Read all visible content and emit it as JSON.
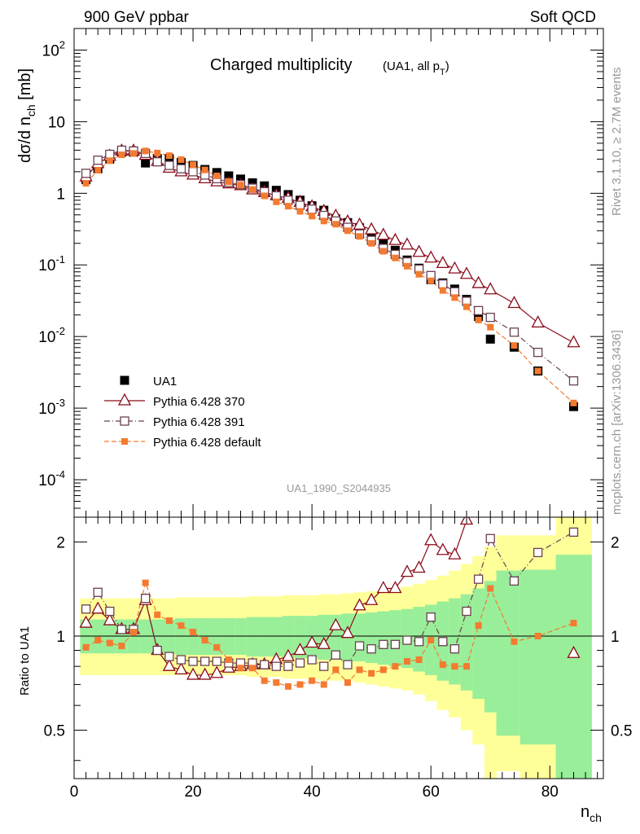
{
  "header": {
    "left": "900 GeV ppbar",
    "right": "Soft QCD"
  },
  "side_labels": {
    "rivet": "Rivet 3.1.10, ≥ 2.7M events",
    "mcplots": "mcplots.cern.ch [arXiv:1306.3436]"
  },
  "chart_data": [
    {
      "type": "scatter",
      "panel": "main",
      "title": "Charged multiplicity",
      "title_sub": "(UA1, all p_T)",
      "ylabel": "dσ/d n_ch [mb]",
      "analysis_id": "UA1_1990_S2044935",
      "yscale": "log",
      "ylim": [
        3e-05,
        200
      ],
      "yticks": [
        "10^2",
        "10",
        "1",
        "10^-1",
        "10^-2",
        "10^-3",
        "10^-4"
      ],
      "x": [
        2,
        4,
        6,
        8,
        10,
        12,
        14,
        16,
        18,
        20,
        22,
        24,
        26,
        28,
        30,
        32,
        34,
        36,
        38,
        40,
        42,
        44,
        46,
        48,
        50,
        52,
        54,
        56,
        58,
        60,
        62,
        64,
        66,
        68,
        70,
        74,
        78,
        84
      ],
      "series": [
        {
          "name": "UA1",
          "style": "data",
          "color": "#000000",
          "values": [
            1.55,
            2.2,
            3.0,
            3.75,
            3.75,
            2.65,
            3.05,
            3.05,
            2.7,
            2.45,
            2.15,
            1.95,
            1.75,
            1.58,
            1.4,
            1.27,
            1.1,
            0.96,
            0.8,
            0.67,
            0.58,
            0.44,
            0.39,
            0.33,
            0.27,
            0.2,
            0.16,
            0.117,
            0.09,
            0.062,
            0.056,
            0.046,
            0.033,
            0.019,
            0.0092,
            0.0071,
            0.0033,
            0.00105
          ]
        },
        {
          "name": "Pythia 6.428 370",
          "style": "triangle",
          "color": "#8b0a1a",
          "values": [
            1.7,
            2.6,
            3.3,
            3.9,
            3.9,
            3.4,
            2.8,
            2.25,
            2.0,
            1.8,
            1.6,
            1.45,
            1.36,
            1.28,
            1.12,
            1.03,
            0.93,
            0.85,
            0.75,
            0.65,
            0.56,
            0.48,
            0.4,
            0.36,
            0.31,
            0.26,
            0.22,
            0.19,
            0.15,
            0.125,
            0.105,
            0.088,
            0.074,
            0.055,
            0.045,
            0.029,
            0.0155,
            0.0082
          ]
        },
        {
          "name": "Pythia 6.428 391",
          "style": "square-open",
          "color": "#6b4050",
          "values": [
            1.9,
            2.9,
            3.5,
            4.0,
            3.9,
            3.6,
            2.75,
            2.45,
            2.2,
            2.0,
            1.8,
            1.6,
            1.42,
            1.32,
            1.18,
            1.05,
            0.92,
            0.8,
            0.68,
            0.6,
            0.49,
            0.41,
            0.335,
            0.27,
            0.22,
            0.17,
            0.14,
            0.11,
            0.087,
            0.071,
            0.054,
            0.042,
            0.031,
            0.023,
            0.0185,
            0.0115,
            0.006,
            0.0024
          ]
        },
        {
          "name": "Pythia 6.428 default",
          "style": "square-filled",
          "color": "#f47a30",
          "values": [
            1.38,
            2.1,
            2.85,
            3.45,
            3.6,
            3.9,
            3.65,
            3.35,
            2.95,
            2.5,
            2.12,
            1.75,
            1.45,
            1.3,
            1.13,
            0.92,
            0.76,
            0.66,
            0.56,
            0.48,
            0.41,
            0.37,
            0.3,
            0.25,
            0.2,
            0.155,
            0.125,
            0.096,
            0.074,
            0.06,
            0.044,
            0.035,
            0.026,
            0.017,
            0.0135,
            0.0075,
            0.0033,
            0.00118
          ]
        }
      ],
      "legend_position": "lower-left"
    },
    {
      "type": "scatter",
      "panel": "ratio",
      "ylabel": "Ratio to UA1",
      "xlabel": "n_ch",
      "xlim": [
        0,
        89
      ],
      "xticks": [
        0,
        20,
        40,
        60,
        80
      ],
      "yscale": "log",
      "ylim": [
        0.35,
        2.4
      ],
      "yticks": [
        0.5,
        1,
        2
      ],
      "x": [
        2,
        4,
        6,
        8,
        10,
        12,
        14,
        16,
        18,
        20,
        22,
        24,
        26,
        28,
        30,
        32,
        34,
        36,
        38,
        40,
        42,
        44,
        46,
        48,
        50,
        52,
        54,
        56,
        58,
        60,
        62,
        64,
        66,
        68,
        70,
        74,
        78,
        84
      ],
      "band_edges": [
        1,
        3,
        5,
        7,
        9,
        11,
        13,
        15,
        17,
        19,
        21,
        23,
        25,
        27,
        29,
        31,
        33,
        35,
        37,
        39,
        41,
        43,
        45,
        47,
        49,
        51,
        53,
        55,
        57,
        59,
        61,
        63,
        65,
        67,
        69,
        71,
        75,
        81,
        87
      ],
      "band_inner_low": [
        0.88,
        0.88,
        0.88,
        0.88,
        0.88,
        0.88,
        0.88,
        0.88,
        0.87,
        0.87,
        0.87,
        0.87,
        0.87,
        0.87,
        0.86,
        0.86,
        0.86,
        0.85,
        0.85,
        0.85,
        0.84,
        0.84,
        0.83,
        0.83,
        0.82,
        0.81,
        0.8,
        0.79,
        0.77,
        0.75,
        0.72,
        0.7,
        0.67,
        0.63,
        0.57,
        0.48,
        0.45,
        0.3
      ],
      "band_inner_high": [
        1.13,
        1.13,
        1.13,
        1.13,
        1.13,
        1.13,
        1.13,
        1.13,
        1.14,
        1.14,
        1.14,
        1.14,
        1.14,
        1.14,
        1.15,
        1.15,
        1.15,
        1.16,
        1.16,
        1.16,
        1.17,
        1.17,
        1.18,
        1.18,
        1.19,
        1.2,
        1.21,
        1.22,
        1.24,
        1.26,
        1.29,
        1.32,
        1.36,
        1.42,
        1.5,
        1.62,
        1.63,
        1.82
      ],
      "band_outer_low": [
        0.75,
        0.75,
        0.75,
        0.75,
        0.75,
        0.75,
        0.75,
        0.75,
        0.75,
        0.75,
        0.75,
        0.75,
        0.75,
        0.75,
        0.74,
        0.74,
        0.74,
        0.73,
        0.73,
        0.73,
        0.72,
        0.72,
        0.72,
        0.71,
        0.7,
        0.69,
        0.68,
        0.67,
        0.65,
        0.62,
        0.58,
        0.55,
        0.5,
        0.45,
        0.35,
        0.37,
        0.35,
        0.3
      ],
      "band_outer_high": [
        1.32,
        1.32,
        1.32,
        1.32,
        1.32,
        1.32,
        1.32,
        1.32,
        1.33,
        1.33,
        1.33,
        1.33,
        1.33,
        1.33,
        1.34,
        1.34,
        1.34,
        1.35,
        1.35,
        1.35,
        1.36,
        1.36,
        1.37,
        1.38,
        1.39,
        1.4,
        1.42,
        1.44,
        1.47,
        1.51,
        1.56,
        1.62,
        1.7,
        1.8,
        1.93,
        2.1,
        2.1,
        2.4
      ],
      "band_inner_color": "#99ee99",
      "band_outer_color": "#ffff99",
      "series": [
        {
          "name": "Pythia 6.428 370",
          "style": "triangle",
          "color": "#8b0a1a",
          "values": [
            1.1,
            1.22,
            1.12,
            1.05,
            1.05,
            1.3,
            0.9,
            0.8,
            0.78,
            0.75,
            0.75,
            0.76,
            0.79,
            0.8,
            0.81,
            0.81,
            0.84,
            0.86,
            0.9,
            0.95,
            0.94,
            1.08,
            1.02,
            1.25,
            1.3,
            1.42,
            1.42,
            1.6,
            1.65,
            2.02,
            1.88,
            1.82,
            2.35,
            null,
            null,
            null,
            null,
            0.88
          ]
        },
        {
          "name": "Pythia 6.428 391",
          "style": "square-open",
          "color": "#6b4050",
          "values": [
            1.22,
            1.38,
            1.2,
            1.05,
            1.05,
            1.32,
            0.9,
            0.86,
            0.84,
            0.83,
            0.83,
            0.83,
            0.82,
            0.82,
            0.82,
            0.81,
            0.8,
            0.8,
            0.82,
            0.84,
            0.8,
            0.87,
            0.81,
            0.93,
            0.91,
            0.94,
            0.94,
            0.97,
            0.96,
            1.15,
            0.96,
            0.91,
            1.2,
            1.52,
            2.05,
            1.5,
            1.85,
            2.15
          ]
        },
        {
          "name": "Pythia 6.428 default",
          "style": "square-filled",
          "color": "#f47a30",
          "values": [
            0.92,
            0.97,
            0.95,
            0.93,
            1.03,
            1.48,
            1.17,
            1.12,
            1.08,
            1.03,
            0.97,
            0.92,
            0.84,
            0.79,
            0.79,
            0.72,
            0.71,
            0.69,
            0.7,
            0.72,
            0.7,
            0.78,
            0.71,
            0.78,
            0.76,
            0.78,
            0.8,
            0.83,
            0.84,
            0.97,
            0.81,
            0.8,
            0.8,
            1.08,
            1.42,
            0.96,
            1.0,
            1.1
          ]
        }
      ]
    }
  ]
}
